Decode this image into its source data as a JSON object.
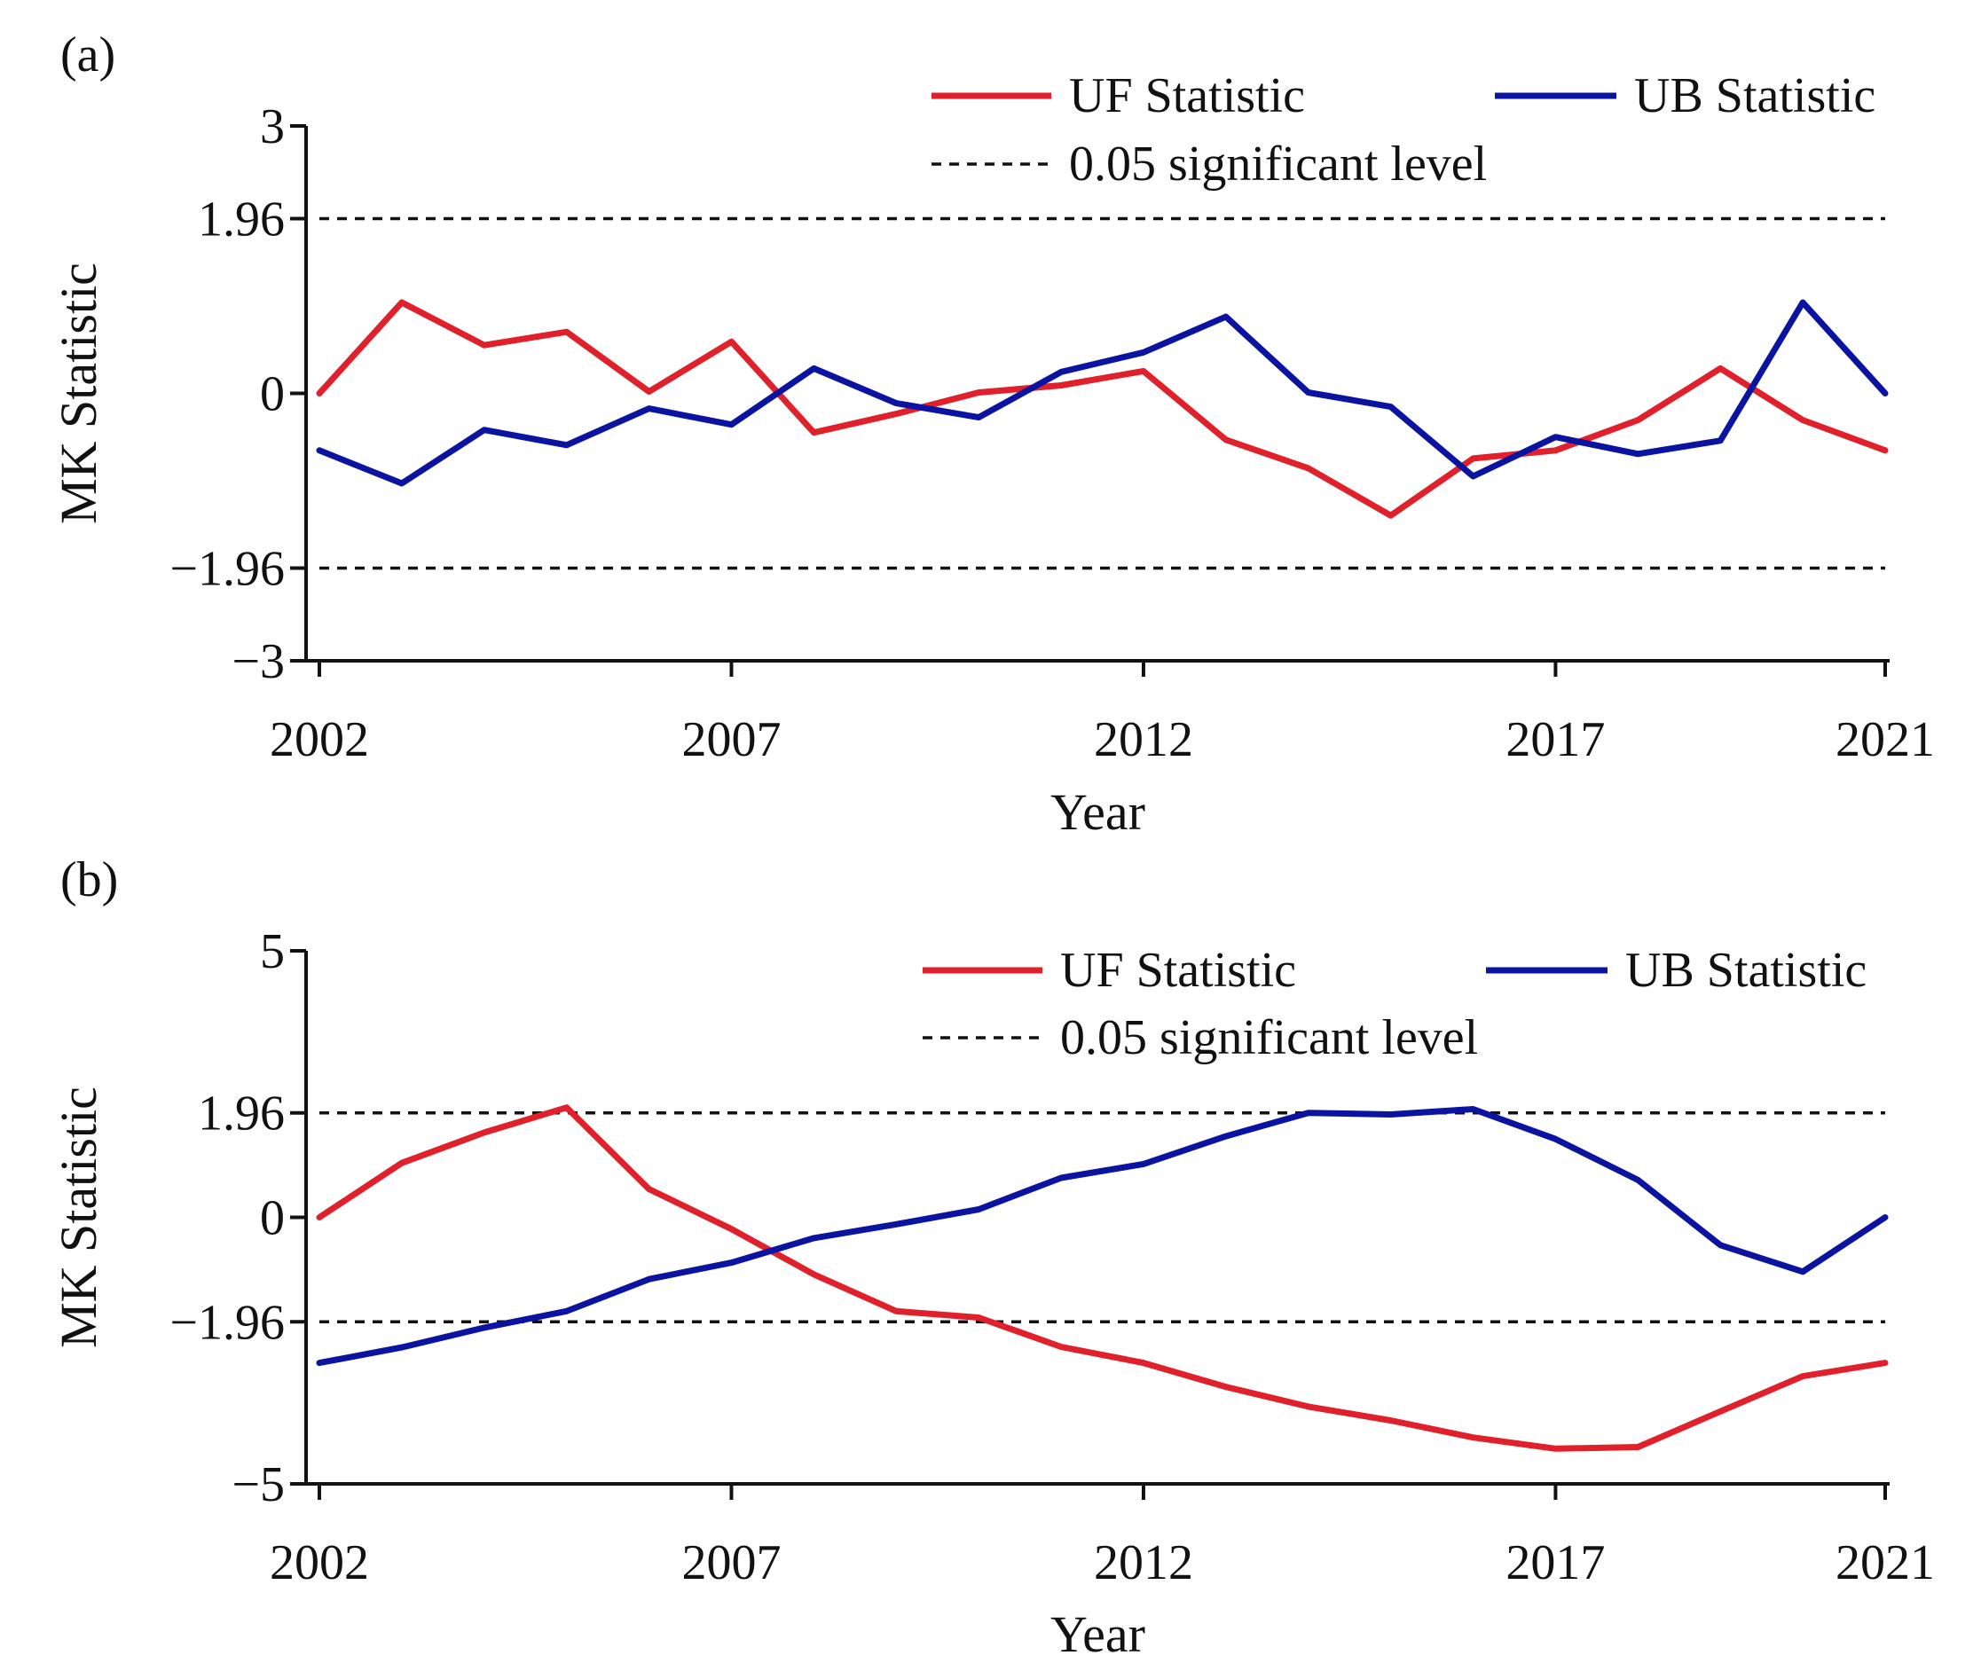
{
  "colors": {
    "uf": "#e0202a",
    "ub": "#0a14a0",
    "reference": "#111111"
  },
  "chart_data": [
    {
      "type": "line",
      "panel_label": "(a)",
      "xlabel": "Year",
      "ylabel": "MK Statistic",
      "xlim": [
        2002,
        2021
      ],
      "ylim": [
        -3,
        3
      ],
      "x_ticks": [
        "2002",
        "2007",
        "2012",
        "2017",
        "2021"
      ],
      "y_ticks": [
        {
          "value": 3,
          "label": "3"
        },
        {
          "value": 1.96,
          "label": "1.96"
        },
        {
          "value": 0,
          "label": "0"
        },
        {
          "value": -1.96,
          "label": "−1.96"
        },
        {
          "value": -3,
          "label": "−3"
        }
      ],
      "reference_lines": [
        1.96,
        -1.96
      ],
      "x": [
        2002,
        2003,
        2004,
        2005,
        2006,
        2007,
        2008,
        2009,
        2010,
        2011,
        2012,
        2013,
        2014,
        2015,
        2016,
        2017,
        2018,
        2019,
        2020,
        2021
      ],
      "series": [
        {
          "name": "UF Statistic",
          "key": "uf",
          "values": [
            0,
            1.02,
            0.54,
            0.69,
            0.02,
            0.58,
            -0.44,
            -0.23,
            0.01,
            0.09,
            0.25,
            -0.52,
            -0.84,
            -1.37,
            -0.73,
            -0.64,
            -0.3,
            0.28,
            -0.3,
            -0.64
          ]
        },
        {
          "name": "UB Statistic",
          "key": "ub",
          "values": [
            -0.64,
            -1.01,
            -0.41,
            -0.58,
            -0.17,
            -0.35,
            0.28,
            -0.11,
            -0.27,
            0.24,
            0.46,
            0.86,
            0.01,
            -0.15,
            -0.93,
            -0.49,
            -0.68,
            -0.53,
            1.02,
            0
          ]
        }
      ],
      "legend": {
        "uf_label": "UF Statistic",
        "ub_label": "UB Statistic",
        "ref_label": "0.05 significant level"
      }
    },
    {
      "type": "line",
      "panel_label": "(b)",
      "xlabel": "Year",
      "ylabel": "MK Statistic",
      "xlim": [
        2002,
        2021
      ],
      "ylim": [
        -5,
        5
      ],
      "x_ticks": [
        "2002",
        "2007",
        "2012",
        "2017",
        "2021"
      ],
      "y_ticks": [
        {
          "value": 5,
          "label": "5"
        },
        {
          "value": 1.96,
          "label": "1.96"
        },
        {
          "value": 0,
          "label": "0"
        },
        {
          "value": -1.96,
          "label": "−1.96"
        },
        {
          "value": -5,
          "label": "−5"
        }
      ],
      "reference_lines": [
        1.96,
        -1.96
      ],
      "x": [
        2002,
        2003,
        2004,
        2005,
        2006,
        2007,
        2008,
        2009,
        2010,
        2011,
        2012,
        2013,
        2014,
        2015,
        2016,
        2017,
        2018,
        2019,
        2020,
        2021
      ],
      "series": [
        {
          "name": "UF Statistic",
          "key": "uf",
          "values": [
            0,
            1.02,
            1.59,
            2.06,
            0.53,
            -0.22,
            -1.07,
            -1.76,
            -1.88,
            -2.43,
            -2.73,
            -3.18,
            -3.55,
            -3.81,
            -4.13,
            -4.34,
            -4.31,
            -3.64,
            -2.98,
            -2.73
          ]
        },
        {
          "name": "UB Statistic",
          "key": "ub",
          "values": [
            -2.73,
            -2.44,
            -2.07,
            -1.76,
            -1.16,
            -0.85,
            -0.39,
            -0.13,
            0.15,
            0.74,
            1.0,
            1.52,
            1.96,
            1.93,
            2.03,
            1.47,
            0.7,
            -0.52,
            -1.02,
            0
          ]
        }
      ],
      "legend": {
        "uf_label": "UF Statistic",
        "ub_label": "UB Statistic",
        "ref_label": "0.05 significant level"
      }
    }
  ]
}
